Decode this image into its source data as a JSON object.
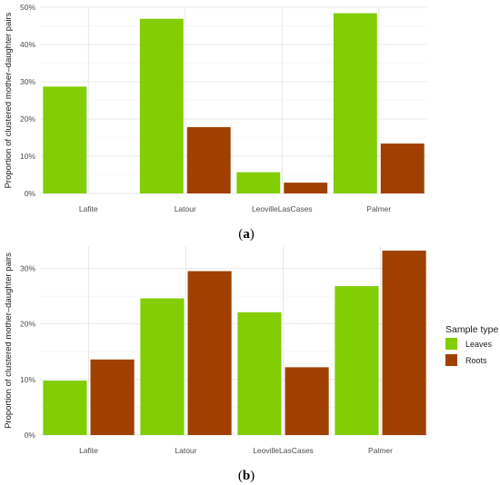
{
  "colors": {
    "leaves": "#82cd04",
    "roots": "#a04000"
  },
  "legend": {
    "title": "Sample type",
    "items": [
      "Leaves",
      "Roots"
    ]
  },
  "panel_labels": {
    "a_open": "(",
    "a_letter": "a",
    "a_close": ")",
    "b_open": "(",
    "b_letter": "b",
    "b_close": ")"
  },
  "chart_data": [
    {
      "type": "bar",
      "ylabel": "Proportion of clustered mother–daughter pairs",
      "categories": [
        "Lafite",
        "Latour",
        "LeovilleLasCases",
        "Palmer"
      ],
      "series": [
        {
          "name": "Leaves",
          "values": [
            28.7,
            46.9,
            5.7,
            48.4
          ]
        },
        {
          "name": "Roots",
          "values": [
            0,
            17.8,
            2.9,
            13.4
          ]
        }
      ],
      "ylim": [
        0,
        50
      ],
      "yticks": [
        0,
        10,
        20,
        30,
        40,
        50
      ],
      "ytick_labels": [
        "0%",
        "10%",
        "20%",
        "30%",
        "40%",
        "50%"
      ],
      "grid": true
    },
    {
      "type": "bar",
      "ylabel": "Proportion of clustered mother–daughter pairs",
      "categories": [
        "Lafite",
        "Latour",
        "LeovilleLasCases",
        "Palmer"
      ],
      "series": [
        {
          "name": "Leaves",
          "values": [
            9.8,
            24.6,
            22.1,
            26.8
          ]
        },
        {
          "name": "Roots",
          "values": [
            13.6,
            29.5,
            12.2,
            33.2
          ]
        }
      ],
      "ylim": [
        0,
        34
      ],
      "yticks": [
        0,
        10,
        20,
        30
      ],
      "ytick_labels": [
        "0%",
        "10%",
        "20%",
        "30%"
      ],
      "grid": true
    }
  ]
}
